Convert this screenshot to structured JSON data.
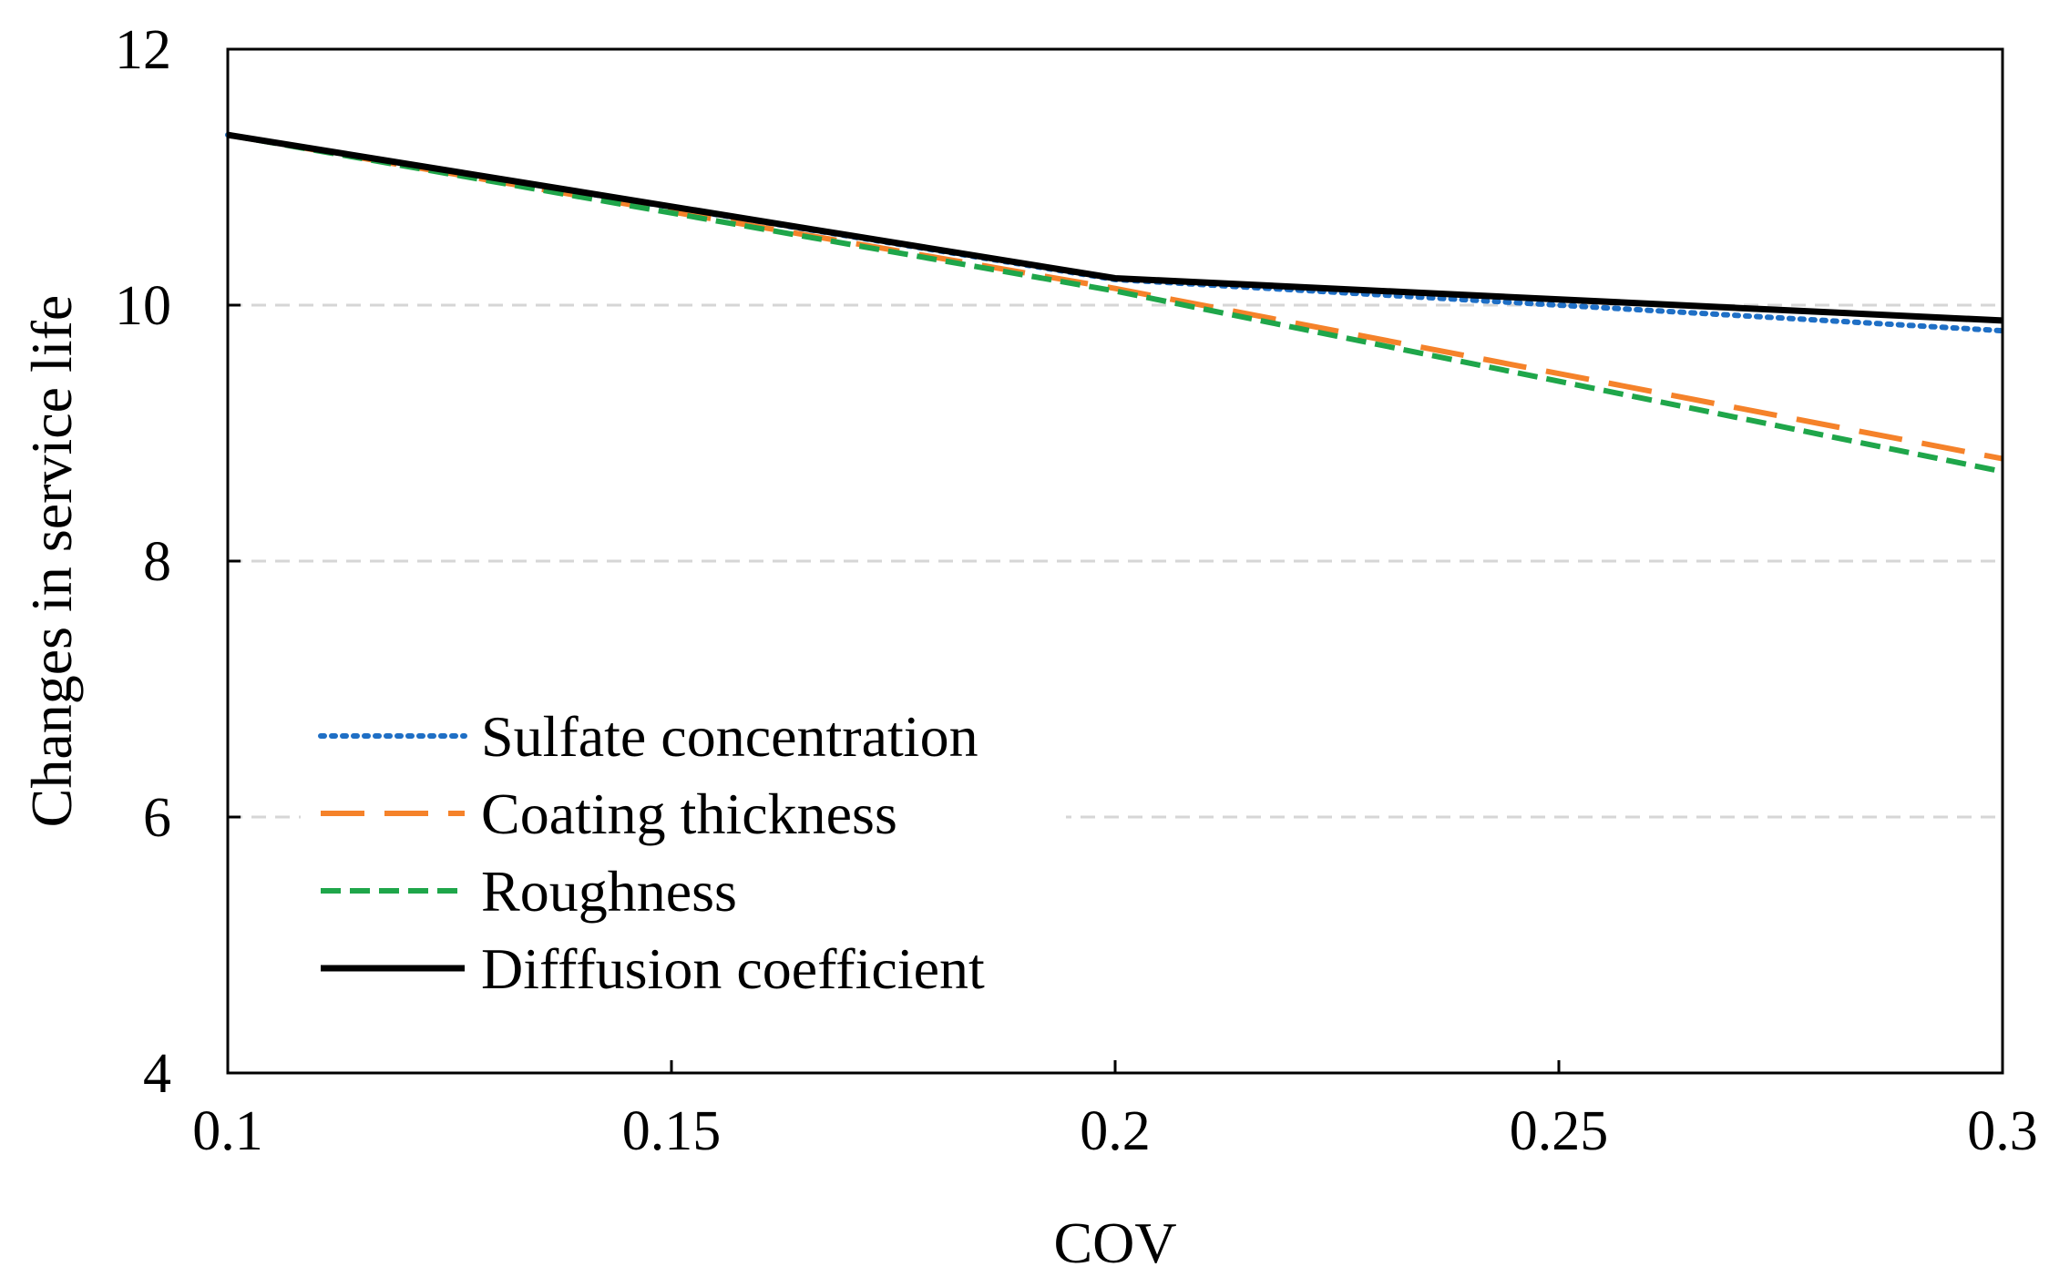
{
  "chart_data": {
    "type": "line",
    "title": "",
    "xlabel": "COV",
    "ylabel": "Changes in service life",
    "x": [
      0.1,
      0.2,
      0.3
    ],
    "xlim": [
      0.1,
      0.3
    ],
    "ylim": [
      4,
      12
    ],
    "xticks": [
      0.1,
      0.15,
      0.2,
      0.25,
      0.3
    ],
    "xtick_labels": [
      "0.1",
      "0.15",
      "0.2",
      "0.25",
      "0.3"
    ],
    "yticks": [
      4,
      6,
      8,
      10,
      12
    ],
    "ytick_labels": [
      "4",
      "6",
      "8",
      "10",
      "12"
    ],
    "grid": "horizontal dashed",
    "legend_position": "lower-left",
    "series": [
      {
        "name": "Sulfate concentration",
        "values": [
          11.33,
          10.2,
          9.8
        ],
        "color": "#1f6fc5",
        "style": "dotted"
      },
      {
        "name": "Coating thickness",
        "values": [
          11.33,
          10.13,
          8.8
        ],
        "color": "#f5822a",
        "style": "long-dash"
      },
      {
        "name": "Roughness",
        "values": [
          11.33,
          10.11,
          8.7
        ],
        "color": "#1fa64a",
        "style": "dash"
      },
      {
        "name": "Difffusion coefficient",
        "values": [
          11.33,
          10.21,
          9.88
        ],
        "color": "#000000",
        "style": "solid"
      }
    ]
  }
}
